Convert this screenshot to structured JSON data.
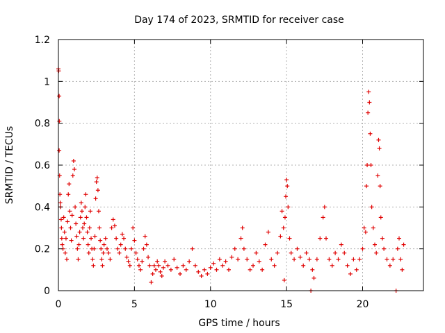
{
  "chart_data": {
    "type": "scatter",
    "title": "Day 174 of 2023, SRMTID for receiver case",
    "xlabel": "GPS time / hours",
    "ylabel": "SRMTID / TECUs",
    "xlim": [
      0,
      24
    ],
    "ylim": [
      0,
      1.2
    ],
    "x_ticks": [
      "0",
      "5",
      "10",
      "15",
      "20"
    ],
    "x_tick_values": [
      0,
      5,
      10,
      15,
      20
    ],
    "y_ticks": [
      "0",
      "0.2",
      "0.4",
      "0.6",
      "0.8",
      "1",
      "1.2"
    ],
    "y_tick_values": [
      0,
      0.2,
      0.4,
      0.6,
      0.8,
      1.0,
      1.2
    ],
    "grid": true,
    "marker": "+",
    "series": [
      {
        "name": "SRMTID",
        "color": "#e00000",
        "points": [
          [
            0.0,
            1.06
          ],
          [
            0.02,
            1.05
          ],
          [
            0.05,
            0.93
          ],
          [
            0.06,
            0.81
          ],
          [
            0.05,
            0.67
          ],
          [
            0.08,
            0.55
          ],
          [
            0.1,
            0.46
          ],
          [
            0.12,
            0.42
          ],
          [
            0.15,
            0.4
          ],
          [
            0.18,
            0.34
          ],
          [
            0.2,
            0.3
          ],
          [
            0.22,
            0.25
          ],
          [
            0.25,
            0.22
          ],
          [
            0.3,
            0.2
          ],
          [
            0.35,
            0.35
          ],
          [
            0.4,
            0.28
          ],
          [
            0.45,
            0.18
          ],
          [
            0.5,
            0.25
          ],
          [
            0.55,
            0.15
          ],
          [
            0.6,
            0.33
          ],
          [
            0.65,
            0.46
          ],
          [
            0.7,
            0.51
          ],
          [
            0.75,
            0.38
          ],
          [
            0.8,
            0.3
          ],
          [
            0.85,
            0.24
          ],
          [
            0.9,
            0.36
          ],
          [
            0.95,
            0.55
          ],
          [
            1.0,
            0.62
          ],
          [
            1.05,
            0.58
          ],
          [
            1.1,
            0.4
          ],
          [
            1.15,
            0.32
          ],
          [
            1.2,
            0.26
          ],
          [
            1.25,
            0.2
          ],
          [
            1.3,
            0.15
          ],
          [
            1.35,
            0.22
          ],
          [
            1.4,
            0.28
          ],
          [
            1.45,
            0.35
          ],
          [
            1.5,
            0.42
          ],
          [
            1.55,
            0.38
          ],
          [
            1.6,
            0.3
          ],
          [
            1.65,
            0.25
          ],
          [
            1.7,
            0.32
          ],
          [
            1.75,
            0.4
          ],
          [
            1.8,
            0.46
          ],
          [
            1.85,
            0.35
          ],
          [
            1.9,
            0.28
          ],
          [
            1.95,
            0.22
          ],
          [
            2.0,
            0.18
          ],
          [
            2.05,
            0.3
          ],
          [
            2.1,
            0.38
          ],
          [
            2.15,
            0.25
          ],
          [
            2.2,
            0.2
          ],
          [
            2.25,
            0.15
          ],
          [
            2.3,
            0.12
          ],
          [
            2.35,
            0.2
          ],
          [
            2.4,
            0.26
          ],
          [
            2.45,
            0.44
          ],
          [
            2.5,
            0.52
          ],
          [
            2.55,
            0.54
          ],
          [
            2.6,
            0.48
          ],
          [
            2.65,
            0.38
          ],
          [
            2.7,
            0.3
          ],
          [
            2.75,
            0.24
          ],
          [
            2.8,
            0.2
          ],
          [
            2.85,
            0.15
          ],
          [
            2.9,
            0.12
          ],
          [
            2.95,
            0.18
          ],
          [
            3.0,
            0.22
          ],
          [
            3.1,
            0.25
          ],
          [
            3.2,
            0.2
          ],
          [
            3.3,
            0.18
          ],
          [
            3.4,
            0.15
          ],
          [
            3.5,
            0.3
          ],
          [
            3.6,
            0.34
          ],
          [
            3.7,
            0.31
          ],
          [
            3.8,
            0.25
          ],
          [
            3.9,
            0.2
          ],
          [
            4.0,
            0.18
          ],
          [
            4.1,
            0.22
          ],
          [
            4.2,
            0.27
          ],
          [
            4.3,
            0.25
          ],
          [
            4.4,
            0.2
          ],
          [
            4.5,
            0.16
          ],
          [
            4.6,
            0.14
          ],
          [
            4.7,
            0.12
          ],
          [
            4.8,
            0.2
          ],
          [
            4.9,
            0.3
          ],
          [
            5.0,
            0.24
          ],
          [
            5.1,
            0.18
          ],
          [
            5.2,
            0.15
          ],
          [
            5.3,
            0.12
          ],
          [
            5.4,
            0.1
          ],
          [
            5.5,
            0.14
          ],
          [
            5.6,
            0.2
          ],
          [
            5.7,
            0.26
          ],
          [
            5.8,
            0.22
          ],
          [
            5.9,
            0.16
          ],
          [
            6.0,
            0.12
          ],
          [
            6.1,
            0.04
          ],
          [
            6.2,
            0.08
          ],
          [
            6.3,
            0.12
          ],
          [
            6.4,
            0.1
          ],
          [
            6.5,
            0.14
          ],
          [
            6.6,
            0.12
          ],
          [
            6.7,
            0.09
          ],
          [
            6.8,
            0.07
          ],
          [
            6.9,
            0.11
          ],
          [
            7.0,
            0.14
          ],
          [
            7.2,
            0.12
          ],
          [
            7.4,
            0.1
          ],
          [
            7.6,
            0.15
          ],
          [
            7.8,
            0.11
          ],
          [
            8.0,
            0.08
          ],
          [
            8.2,
            0.12
          ],
          [
            8.4,
            0.1
          ],
          [
            8.6,
            0.14
          ],
          [
            8.8,
            0.2
          ],
          [
            9.0,
            0.12
          ],
          [
            9.2,
            0.09
          ],
          [
            9.4,
            0.07
          ],
          [
            9.6,
            0.1
          ],
          [
            9.8,
            0.08
          ],
          [
            10.0,
            0.11
          ],
          [
            10.2,
            0.13
          ],
          [
            10.4,
            0.1
          ],
          [
            10.6,
            0.15
          ],
          [
            10.8,
            0.12
          ],
          [
            11.0,
            0.14
          ],
          [
            11.2,
            0.1
          ],
          [
            11.4,
            0.16
          ],
          [
            11.6,
            0.2
          ],
          [
            11.8,
            0.15
          ],
          [
            12.0,
            0.25
          ],
          [
            12.1,
            0.3
          ],
          [
            12.2,
            0.2
          ],
          [
            12.4,
            0.15
          ],
          [
            12.6,
            0.1
          ],
          [
            12.8,
            0.12
          ],
          [
            13.0,
            0.18
          ],
          [
            13.2,
            0.14
          ],
          [
            13.4,
            0.1
          ],
          [
            13.6,
            0.22
          ],
          [
            13.8,
            0.28
          ],
          [
            14.0,
            0.15
          ],
          [
            14.2,
            0.12
          ],
          [
            14.4,
            0.18
          ],
          [
            14.6,
            0.26
          ],
          [
            14.7,
            0.38
          ],
          [
            14.8,
            0.3
          ],
          [
            14.85,
            0.05
          ],
          [
            14.9,
            0.35
          ],
          [
            14.95,
            0.45
          ],
          [
            15.0,
            0.53
          ],
          [
            15.05,
            0.5
          ],
          [
            15.1,
            0.4
          ],
          [
            15.2,
            0.25
          ],
          [
            15.3,
            0.18
          ],
          [
            15.5,
            0.15
          ],
          [
            15.7,
            0.2
          ],
          [
            15.9,
            0.16
          ],
          [
            16.1,
            0.12
          ],
          [
            16.3,
            0.18
          ],
          [
            16.5,
            0.15
          ],
          [
            16.6,
            0.0
          ],
          [
            16.7,
            0.1
          ],
          [
            16.8,
            0.06
          ],
          [
            17.0,
            0.15
          ],
          [
            17.2,
            0.25
          ],
          [
            17.4,
            0.35
          ],
          [
            17.5,
            0.4
          ],
          [
            17.6,
            0.25
          ],
          [
            17.8,
            0.15
          ],
          [
            18.0,
            0.12
          ],
          [
            18.2,
            0.18
          ],
          [
            18.4,
            0.15
          ],
          [
            18.6,
            0.22
          ],
          [
            18.8,
            0.18
          ],
          [
            19.0,
            0.12
          ],
          [
            19.2,
            0.08
          ],
          [
            19.4,
            0.15
          ],
          [
            19.6,
            0.1
          ],
          [
            19.8,
            0.15
          ],
          [
            20.0,
            0.2
          ],
          [
            20.1,
            0.3
          ],
          [
            20.2,
            0.28
          ],
          [
            20.25,
            0.5
          ],
          [
            20.3,
            0.6
          ],
          [
            20.35,
            0.85
          ],
          [
            20.4,
            0.95
          ],
          [
            20.45,
            0.9
          ],
          [
            20.5,
            0.75
          ],
          [
            20.55,
            0.6
          ],
          [
            20.6,
            0.4
          ],
          [
            20.7,
            0.3
          ],
          [
            20.8,
            0.22
          ],
          [
            20.9,
            0.18
          ],
          [
            21.0,
            0.55
          ],
          [
            21.05,
            0.72
          ],
          [
            21.1,
            0.68
          ],
          [
            21.15,
            0.5
          ],
          [
            21.2,
            0.35
          ],
          [
            21.3,
            0.25
          ],
          [
            21.4,
            0.2
          ],
          [
            21.6,
            0.15
          ],
          [
            21.8,
            0.12
          ],
          [
            22.0,
            0.15
          ],
          [
            22.2,
            0.0
          ],
          [
            22.3,
            0.2
          ],
          [
            22.4,
            0.25
          ],
          [
            22.5,
            0.15
          ],
          [
            22.6,
            0.1
          ],
          [
            22.7,
            0.22
          ]
        ]
      }
    ]
  }
}
